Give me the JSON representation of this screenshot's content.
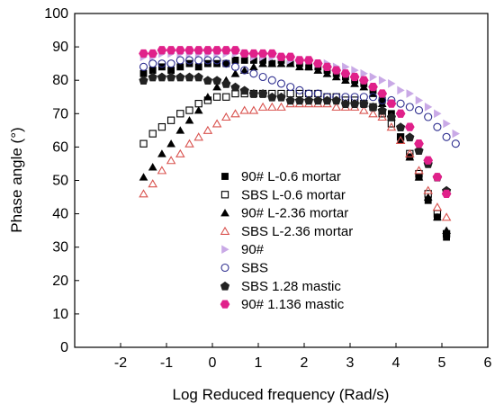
{
  "chart_data": {
    "type": "scatter",
    "xlabel": "Log Reduced frequency (Rad/s)",
    "ylabel": "Phase angle (°)",
    "xlim": [
      -3,
      6
    ],
    "ylim": [
      0,
      100
    ],
    "xticks": [
      -2,
      -1,
      0,
      1,
      2,
      3,
      4,
      5,
      6
    ],
    "yticks": [
      0,
      10,
      20,
      30,
      40,
      50,
      60,
      70,
      80,
      90,
      100
    ],
    "legend_position": "center-right",
    "series": [
      {
        "name": "90# L-0.6 mortar",
        "marker": "square",
        "filled": true,
        "color": "#000000",
        "points": [
          [
            -1.5,
            82
          ],
          [
            -1.3,
            83
          ],
          [
            -1.1,
            84
          ],
          [
            -0.9,
            83
          ],
          [
            -0.7,
            84
          ],
          [
            -0.5,
            85
          ],
          [
            -0.3,
            84
          ],
          [
            -0.1,
            85
          ],
          [
            0.1,
            85
          ],
          [
            0.3,
            85
          ],
          [
            0.5,
            86
          ],
          [
            0.7,
            86
          ],
          [
            0.9,
            86
          ],
          [
            1.1,
            86
          ],
          [
            1.3,
            85
          ],
          [
            1.5,
            86
          ],
          [
            1.7,
            85
          ],
          [
            1.9,
            85
          ],
          [
            2.1,
            84
          ],
          [
            2.3,
            84
          ],
          [
            2.5,
            83
          ],
          [
            2.7,
            82
          ],
          [
            2.9,
            81
          ],
          [
            3.1,
            80
          ],
          [
            3.3,
            79
          ],
          [
            3.5,
            77
          ],
          [
            3.7,
            74
          ],
          [
            3.9,
            70
          ],
          [
            4.1,
            63
          ],
          [
            4.3,
            57
          ],
          [
            4.5,
            51
          ],
          [
            4.7,
            44
          ],
          [
            4.9,
            39
          ],
          [
            5.1,
            33
          ]
        ]
      },
      {
        "name": "SBS L-0.6 mortar",
        "marker": "square",
        "filled": false,
        "color": "#000000",
        "points": [
          [
            -1.5,
            61
          ],
          [
            -1.3,
            64
          ],
          [
            -1.1,
            66
          ],
          [
            -0.9,
            68
          ],
          [
            -0.7,
            70
          ],
          [
            -0.5,
            71
          ],
          [
            -0.3,
            73
          ],
          [
            -0.1,
            74
          ],
          [
            0.1,
            75
          ],
          [
            0.3,
            75
          ],
          [
            0.5,
            76
          ],
          [
            0.7,
            76
          ],
          [
            0.9,
            76
          ],
          [
            1.1,
            76
          ],
          [
            1.3,
            76
          ],
          [
            1.5,
            76
          ],
          [
            1.7,
            76
          ],
          [
            1.9,
            76
          ],
          [
            2.1,
            76
          ],
          [
            2.3,
            76
          ],
          [
            2.5,
            75
          ],
          [
            2.7,
            75
          ],
          [
            2.9,
            74
          ],
          [
            3.1,
            74
          ],
          [
            3.3,
            73
          ],
          [
            3.5,
            72
          ],
          [
            3.7,
            70
          ],
          [
            3.9,
            67
          ],
          [
            4.1,
            63
          ],
          [
            4.3,
            58
          ],
          [
            4.5,
            52
          ],
          [
            4.7,
            46
          ],
          [
            4.9,
            40
          ],
          [
            5.1,
            34
          ]
        ]
      },
      {
        "name": "90# L-2.36 mortar",
        "marker": "triangle",
        "filled": true,
        "color": "#000000",
        "points": [
          [
            -1.5,
            51
          ],
          [
            -1.3,
            54
          ],
          [
            -1.1,
            58
          ],
          [
            -0.9,
            61
          ],
          [
            -0.7,
            65
          ],
          [
            -0.5,
            68
          ],
          [
            -0.3,
            71
          ],
          [
            -0.1,
            75
          ],
          [
            0.1,
            78
          ],
          [
            0.3,
            80
          ],
          [
            0.5,
            82
          ],
          [
            0.7,
            83
          ],
          [
            0.9,
            84
          ],
          [
            1.1,
            85
          ],
          [
            1.3,
            85
          ],
          [
            1.5,
            85
          ],
          [
            1.7,
            85
          ],
          [
            1.9,
            84
          ],
          [
            2.1,
            84
          ],
          [
            2.3,
            83
          ],
          [
            2.5,
            82
          ],
          [
            2.7,
            81
          ],
          [
            2.9,
            80
          ],
          [
            3.1,
            79
          ],
          [
            3.3,
            78
          ],
          [
            3.5,
            76
          ],
          [
            3.7,
            73
          ],
          [
            3.9,
            69
          ],
          [
            4.1,
            62
          ],
          [
            4.3,
            57
          ],
          [
            4.5,
            51
          ],
          [
            4.7,
            45
          ],
          [
            4.9,
            39
          ],
          [
            5.1,
            35
          ]
        ]
      },
      {
        "name": "SBS L-2.36 mortar",
        "marker": "triangle",
        "filled": false,
        "color": "#d9534f",
        "points": [
          [
            -1.5,
            46
          ],
          [
            -1.3,
            49
          ],
          [
            -1.1,
            53
          ],
          [
            -0.9,
            56
          ],
          [
            -0.7,
            58
          ],
          [
            -0.5,
            61
          ],
          [
            -0.3,
            63
          ],
          [
            -0.1,
            65
          ],
          [
            0.1,
            67
          ],
          [
            0.3,
            69
          ],
          [
            0.5,
            70
          ],
          [
            0.7,
            71
          ],
          [
            0.9,
            71
          ],
          [
            1.1,
            72
          ],
          [
            1.3,
            72
          ],
          [
            1.5,
            72
          ],
          [
            1.7,
            73
          ],
          [
            1.9,
            73
          ],
          [
            2.1,
            73
          ],
          [
            2.3,
            73
          ],
          [
            2.5,
            73
          ],
          [
            2.7,
            72
          ],
          [
            2.9,
            72
          ],
          [
            3.1,
            72
          ],
          [
            3.3,
            71
          ],
          [
            3.5,
            70
          ],
          [
            3.7,
            69
          ],
          [
            3.9,
            66
          ],
          [
            4.1,
            62
          ],
          [
            4.3,
            58
          ],
          [
            4.5,
            53
          ],
          [
            4.7,
            47
          ],
          [
            4.9,
            42
          ],
          [
            5.1,
            39
          ]
        ]
      },
      {
        "name": "90#",
        "marker": "triangle-right",
        "filled": true,
        "color": "#c9a9e6",
        "points": [
          [
            -1.5,
            87
          ],
          [
            -1.3,
            87
          ],
          [
            -1.1,
            88
          ],
          [
            -0.9,
            88
          ],
          [
            -0.7,
            88
          ],
          [
            -0.5,
            88
          ],
          [
            -0.3,
            88
          ],
          [
            -0.1,
            88
          ],
          [
            0.1,
            88
          ],
          [
            0.3,
            88
          ],
          [
            0.5,
            88
          ],
          [
            0.7,
            88
          ],
          [
            0.9,
            87
          ],
          [
            1.1,
            87
          ],
          [
            1.3,
            87
          ],
          [
            1.5,
            87
          ],
          [
            1.7,
            86
          ],
          [
            1.9,
            86
          ],
          [
            2.1,
            86
          ],
          [
            2.3,
            85
          ],
          [
            2.5,
            85
          ],
          [
            2.7,
            84
          ],
          [
            2.9,
            84
          ],
          [
            3.1,
            83
          ],
          [
            3.3,
            82
          ],
          [
            3.5,
            81
          ],
          [
            3.7,
            80
          ],
          [
            3.9,
            79
          ],
          [
            4.1,
            77
          ],
          [
            4.3,
            76
          ],
          [
            4.5,
            74
          ],
          [
            4.7,
            72
          ],
          [
            4.9,
            70
          ],
          [
            5.1,
            67
          ],
          [
            5.3,
            64
          ]
        ]
      },
      {
        "name": "SBS",
        "marker": "circle",
        "filled": false,
        "color": "#2e2e8f",
        "points": [
          [
            -1.5,
            84
          ],
          [
            -1.3,
            85
          ],
          [
            -1.1,
            85
          ],
          [
            -0.9,
            85
          ],
          [
            -0.7,
            86
          ],
          [
            -0.5,
            86
          ],
          [
            -0.3,
            86
          ],
          [
            -0.1,
            86
          ],
          [
            0.1,
            86
          ],
          [
            0.3,
            85
          ],
          [
            0.5,
            84
          ],
          [
            0.7,
            83
          ],
          [
            0.9,
            82
          ],
          [
            1.1,
            81
          ],
          [
            1.3,
            80
          ],
          [
            1.5,
            79
          ],
          [
            1.7,
            78
          ],
          [
            1.9,
            77
          ],
          [
            2.1,
            76
          ],
          [
            2.3,
            76
          ],
          [
            2.5,
            75
          ],
          [
            2.7,
            75
          ],
          [
            2.9,
            75
          ],
          [
            3.1,
            75
          ],
          [
            3.3,
            75
          ],
          [
            3.5,
            75
          ],
          [
            3.7,
            74
          ],
          [
            3.9,
            74
          ],
          [
            4.1,
            73
          ],
          [
            4.3,
            72
          ],
          [
            4.5,
            71
          ],
          [
            4.7,
            69
          ],
          [
            4.9,
            66
          ],
          [
            5.1,
            63
          ],
          [
            5.3,
            61
          ]
        ]
      },
      {
        "name": "SBS 1.28 mastic",
        "marker": "pentagon",
        "filled": true,
        "color": "#222222",
        "points": [
          [
            -1.5,
            80
          ],
          [
            -1.3,
            81
          ],
          [
            -1.1,
            81
          ],
          [
            -0.9,
            81
          ],
          [
            -0.7,
            81
          ],
          [
            -0.5,
            81
          ],
          [
            -0.3,
            81
          ],
          [
            -0.1,
            80
          ],
          [
            0.1,
            80
          ],
          [
            0.3,
            79
          ],
          [
            0.5,
            78
          ],
          [
            0.7,
            77
          ],
          [
            0.9,
            76
          ],
          [
            1.1,
            76
          ],
          [
            1.3,
            75
          ],
          [
            1.5,
            75
          ],
          [
            1.7,
            74
          ],
          [
            1.9,
            74
          ],
          [
            2.1,
            74
          ],
          [
            2.3,
            74
          ],
          [
            2.5,
            74
          ],
          [
            2.7,
            74
          ],
          [
            2.9,
            73
          ],
          [
            3.1,
            73
          ],
          [
            3.3,
            73
          ],
          [
            3.5,
            72
          ],
          [
            3.7,
            71
          ],
          [
            3.9,
            69
          ],
          [
            4.1,
            66
          ],
          [
            4.3,
            63
          ],
          [
            4.5,
            59
          ],
          [
            4.7,
            55
          ],
          [
            4.9,
            51
          ],
          [
            5.1,
            47
          ]
        ]
      },
      {
        "name": "90# 1.136 mastic",
        "marker": "hexagon",
        "filled": true,
        "color": "#e0218a",
        "points": [
          [
            -1.5,
            88
          ],
          [
            -1.3,
            88
          ],
          [
            -1.1,
            89
          ],
          [
            -0.9,
            89
          ],
          [
            -0.7,
            89
          ],
          [
            -0.5,
            89
          ],
          [
            -0.3,
            89
          ],
          [
            -0.1,
            89
          ],
          [
            0.1,
            89
          ],
          [
            0.3,
            89
          ],
          [
            0.5,
            89
          ],
          [
            0.7,
            88
          ],
          [
            0.9,
            88
          ],
          [
            1.1,
            88
          ],
          [
            1.3,
            88
          ],
          [
            1.5,
            87
          ],
          [
            1.7,
            87
          ],
          [
            1.9,
            86
          ],
          [
            2.1,
            86
          ],
          [
            2.3,
            85
          ],
          [
            2.5,
            84
          ],
          [
            2.7,
            83
          ],
          [
            2.9,
            82
          ],
          [
            3.1,
            81
          ],
          [
            3.3,
            80
          ],
          [
            3.5,
            78
          ],
          [
            3.7,
            76
          ],
          [
            3.9,
            73
          ],
          [
            4.1,
            70
          ],
          [
            4.3,
            66
          ],
          [
            4.5,
            61
          ],
          [
            4.7,
            56
          ],
          [
            4.9,
            51
          ],
          [
            5.1,
            46
          ]
        ]
      }
    ]
  }
}
